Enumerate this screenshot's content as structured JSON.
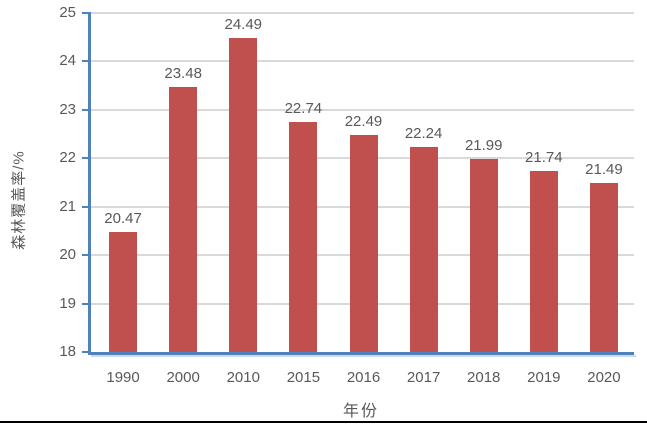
{
  "chart_data": {
    "type": "bar",
    "title": "",
    "xlabel": "年份",
    "ylabel": "森林覆盖率/%",
    "categories": [
      "1990",
      "2000",
      "2010",
      "2015",
      "2016",
      "2017",
      "2018",
      "2019",
      "2020"
    ],
    "values": [
      20.47,
      23.48,
      24.49,
      22.74,
      22.49,
      22.24,
      21.99,
      21.74,
      21.49
    ],
    "value_labels": [
      "20.47",
      "23.48",
      "24.49",
      "22.74",
      "22.49",
      "22.24",
      "21.99",
      "21.74",
      "21.49"
    ],
    "ylim": [
      18,
      25
    ],
    "yticks": [
      18,
      19,
      20,
      21,
      22,
      23,
      24,
      25
    ],
    "ytick_labels": [
      "18",
      "19",
      "20",
      "21",
      "22",
      "23",
      "24",
      "25"
    ],
    "grid": true,
    "legend_position": "none",
    "bar_color": "#C0504D",
    "axis_color": "#4F81BD",
    "gridline_color": "#D9D9D9",
    "label_color": "#595959"
  }
}
